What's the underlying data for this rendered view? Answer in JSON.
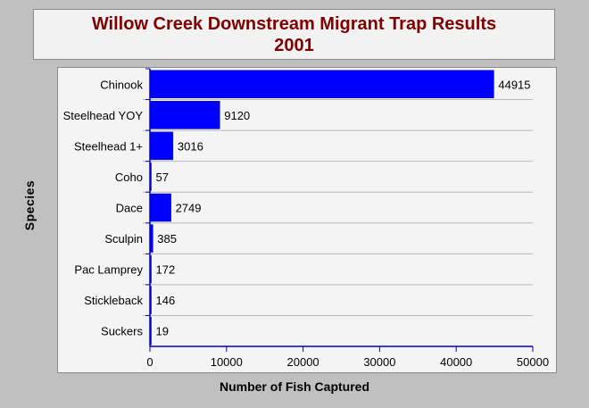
{
  "chart_data": {
    "type": "bar",
    "orientation": "horizontal",
    "title": [
      "Willow Creek Downstream Migrant Trap Results",
      "2001"
    ],
    "xlabel": "Number of Fish Captured",
    "ylabel": "Species",
    "categories": [
      "Chinook",
      "Steelhead YOY",
      "Steelhead 1+",
      "Coho",
      "Dace",
      "Sculpin",
      "Pac Lamprey",
      "Stickleback",
      "Suckers"
    ],
    "values": [
      44915,
      9120,
      3016,
      57,
      2749,
      385,
      172,
      146,
      19
    ],
    "xlim": [
      0,
      50000
    ],
    "xticks": [
      0,
      10000,
      20000,
      30000,
      40000,
      50000
    ],
    "xtick_labels": [
      "0",
      "10000",
      "20000",
      "30000",
      "40000",
      "50000"
    ],
    "data_labels": true,
    "grid": "horizontal",
    "bar_color": "#0000ff"
  }
}
